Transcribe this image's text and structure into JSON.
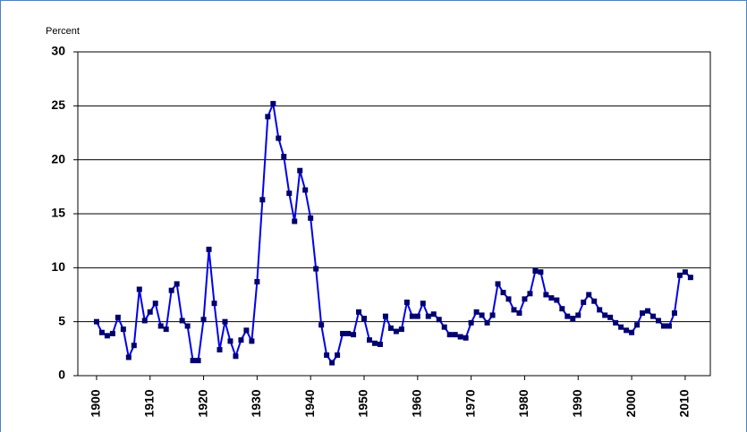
{
  "chart_data": {
    "type": "line",
    "y_label": "Percent",
    "x": [
      1900,
      1901,
      1902,
      1903,
      1904,
      1905,
      1906,
      1907,
      1908,
      1909,
      1910,
      1911,
      1912,
      1913,
      1914,
      1915,
      1916,
      1917,
      1918,
      1919,
      1920,
      1921,
      1922,
      1923,
      1924,
      1925,
      1926,
      1927,
      1928,
      1929,
      1930,
      1931,
      1932,
      1933,
      1934,
      1935,
      1936,
      1937,
      1938,
      1939,
      1940,
      1941,
      1942,
      1943,
      1944,
      1945,
      1946,
      1947,
      1948,
      1949,
      1950,
      1951,
      1952,
      1953,
      1954,
      1955,
      1956,
      1957,
      1958,
      1959,
      1960,
      1961,
      1962,
      1963,
      1964,
      1965,
      1966,
      1967,
      1968,
      1969,
      1970,
      1971,
      1972,
      1973,
      1974,
      1975,
      1976,
      1977,
      1978,
      1979,
      1980,
      1981,
      1982,
      1983,
      1984,
      1985,
      1986,
      1987,
      1988,
      1989,
      1990,
      1991,
      1992,
      1993,
      1994,
      1995,
      1996,
      1997,
      1998,
      1999,
      2000,
      2001,
      2002,
      2003,
      2004,
      2005,
      2006,
      2007,
      2008,
      2009,
      2010,
      2011
    ],
    "series": [
      {
        "color": "#0000ee",
        "marker_color": "#00006e",
        "values": [
          5.0,
          4.0,
          3.7,
          3.9,
          5.4,
          4.3,
          1.7,
          2.8,
          8.0,
          5.1,
          5.9,
          6.7,
          4.6,
          4.3,
          7.9,
          8.5,
          5.1,
          4.6,
          1.4,
          1.4,
          5.2,
          11.7,
          6.7,
          2.4,
          5.0,
          3.2,
          1.8,
          3.3,
          4.2,
          3.2,
          8.7,
          16.3,
          24.0,
          25.2,
          22.0,
          20.3,
          16.9,
          14.3,
          19.0,
          17.2,
          14.6,
          9.9,
          4.7,
          1.9,
          1.2,
          1.9,
          3.9,
          3.9,
          3.8,
          5.9,
          5.3,
          3.3,
          3.0,
          2.9,
          5.5,
          4.4,
          4.1,
          4.3,
          6.8,
          5.5,
          5.5,
          6.7,
          5.5,
          5.7,
          5.2,
          4.5,
          3.8,
          3.8,
          3.6,
          3.5,
          4.9,
          5.9,
          5.6,
          4.9,
          5.6,
          8.5,
          7.7,
          7.1,
          6.1,
          5.8,
          7.1,
          7.6,
          9.7,
          9.6,
          7.5,
          7.2,
          7.0,
          6.2,
          5.5,
          5.3,
          5.6,
          6.8,
          7.5,
          6.9,
          6.1,
          5.6,
          5.4,
          4.9,
          4.5,
          4.2,
          4.0,
          4.7,
          5.8,
          6.0,
          5.5,
          5.1,
          4.6,
          4.6,
          5.8,
          9.3,
          9.6,
          9.1
        ]
      }
    ],
    "xlim": [
      1896.5,
      2014.7
    ],
    "xticks": [
      1900,
      1910,
      1920,
      1930,
      1940,
      1950,
      1960,
      1970,
      1980,
      1990,
      2000,
      2010
    ],
    "ylim": [
      0,
      30
    ],
    "yticks": [
      0,
      5,
      10,
      15,
      20,
      25,
      30
    ],
    "grid": true
  }
}
